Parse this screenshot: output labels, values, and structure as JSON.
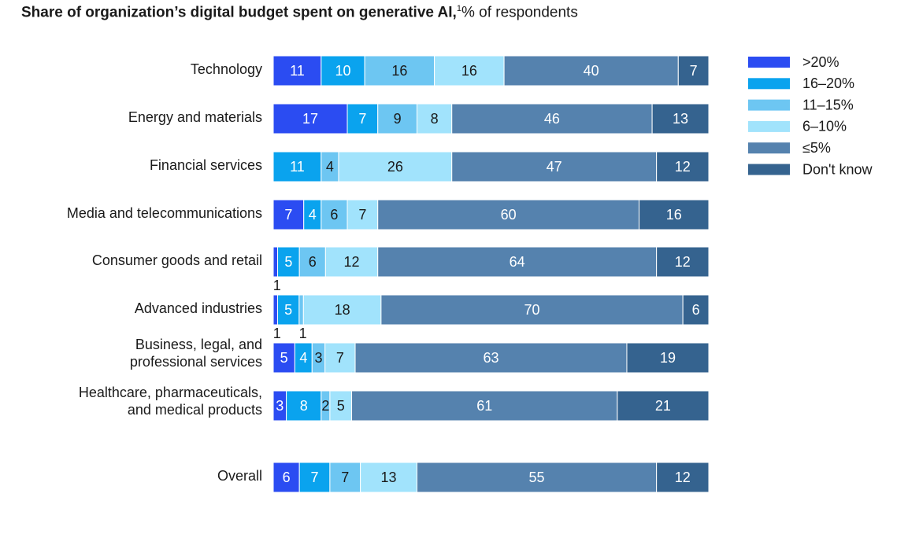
{
  "title": {
    "bold": "Share of organization’s digital budget spent on generative AI,",
    "footnote": "1",
    "subtitle": "% of respondents"
  },
  "chart_data": {
    "type": "bar",
    "orientation": "horizontal",
    "stacked": true,
    "title": "Share of organization’s digital budget spent on generative AI",
    "unit": "% of respondents",
    "legend_position": "top-right",
    "legend": [
      ">20%",
      "16–20%",
      "11–15%",
      "6–10%",
      "≤5%",
      "Don't know"
    ],
    "colors": [
      "#2b4cf2",
      "#0aa3ee",
      "#6dc6f2",
      "#a1e3fc",
      "#5582ae",
      "#35638f"
    ],
    "category_labels": [
      [
        "Technology"
      ],
      [
        "Energy and materials"
      ],
      [
        "Financial services"
      ],
      [
        "Media and telecommunications"
      ],
      [
        "Consumer goods and retail"
      ],
      [
        "Advanced industries"
      ],
      [
        "Business, legal, and",
        "professional services"
      ],
      [
        "Healthcare, pharmaceuticals,",
        "and medical products"
      ],
      [
        "Overall"
      ]
    ],
    "categories": [
      "Technology",
      "Energy and materials",
      "Financial services",
      "Media and telecommunications",
      "Consumer goods and retail",
      "Advanced industries",
      "Business, legal, and professional services",
      "Healthcare, pharmaceuticals, and medical products",
      "Overall"
    ],
    "series": [
      {
        "name": ">20%",
        "values": [
          11,
          17,
          0,
          7,
          1,
          1,
          5,
          3,
          6
        ]
      },
      {
        "name": "16–20%",
        "values": [
          10,
          7,
          11,
          4,
          5,
          5,
          4,
          8,
          7
        ]
      },
      {
        "name": "11–15%",
        "values": [
          16,
          9,
          4,
          6,
          6,
          1,
          3,
          2,
          7
        ]
      },
      {
        "name": "6–10%",
        "values": [
          16,
          8,
          26,
          7,
          12,
          18,
          7,
          5,
          13
        ]
      },
      {
        "name": "≤5%",
        "values": [
          40,
          46,
          47,
          60,
          64,
          70,
          63,
          61,
          55
        ]
      },
      {
        "name": "Don't know",
        "values": [
          7,
          13,
          12,
          16,
          12,
          6,
          19,
          21,
          12
        ]
      }
    ]
  }
}
